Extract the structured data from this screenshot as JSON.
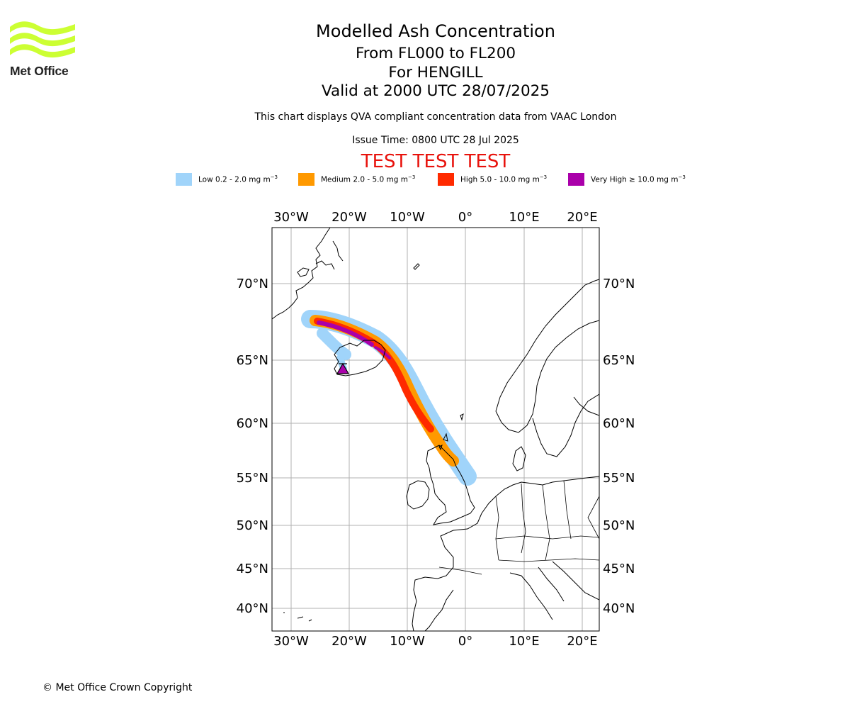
{
  "logo": {
    "name": "Met Office",
    "color": "#ccff33",
    "text_color": "#222222"
  },
  "header": {
    "title": "Modelled Ash Concentration",
    "level_range": "From FL000 to FL200",
    "volcano": "For HENGILL",
    "valid_time": "Valid at 2000 UTC 28/07/2025",
    "description": "This chart displays QVA compliant concentration data from VAAC London",
    "issue_time": "Issue Time: 0800 UTC 28 Jul 2025",
    "test_banner": "TEST TEST TEST",
    "test_color": "#e8120c"
  },
  "legend": [
    {
      "label": "Low 0.2 - 2.0 mg m",
      "sup": "−3",
      "color": "#a0d4fa"
    },
    {
      "label": "Medium 2.0 - 5.0 mg m",
      "sup": "−3",
      "color": "#ff9900"
    },
    {
      "label": "High 5.0 - 10.0 mg m",
      "sup": "−3",
      "color": "#ff2a00"
    },
    {
      "label": "Very High  ≥  10.0 mg m",
      "sup": "−3",
      "color": "#aa00aa"
    }
  ],
  "map": {
    "lon_ticks": [
      "30°W",
      "20°W",
      "10°W",
      "0°",
      "10°E",
      "20°E"
    ],
    "lat_ticks": [
      "70°N",
      "65°N",
      "60°N",
      "55°N",
      "50°N",
      "45°N",
      "40°N"
    ],
    "lon_range": [
      -33,
      23
    ],
    "lat_range": [
      38,
      73
    ],
    "grid": true,
    "volcano_marker": "volcano-triangle-icon"
  },
  "footer": {
    "copyright": "© Met Office Crown Copyright"
  }
}
